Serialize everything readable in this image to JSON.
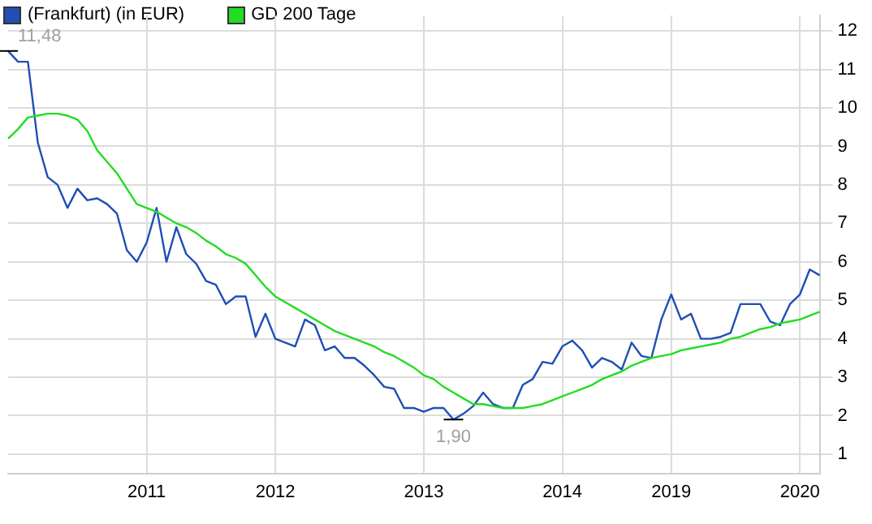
{
  "chart_data": {
    "type": "line",
    "categories": [
      null,
      null,
      null,
      null,
      null,
      null,
      null,
      null,
      null,
      null,
      null,
      null,
      null,
      null,
      "2011",
      null,
      null,
      null,
      null,
      null,
      null,
      null,
      null,
      null,
      null,
      null,
      null,
      "2012",
      null,
      null,
      null,
      null,
      null,
      null,
      null,
      null,
      null,
      null,
      null,
      null,
      null,
      null,
      "2013",
      null,
      null,
      null,
      null,
      null,
      null,
      null,
      null,
      null,
      null,
      null,
      null,
      null,
      "2014",
      null,
      null,
      null,
      null,
      null,
      null,
      null,
      null,
      null,
      null,
      "2019",
      null,
      null,
      null,
      null,
      null,
      null,
      null,
      null,
      null,
      null,
      null,
      null,
      "2020",
      null,
      null
    ],
    "series": [
      {
        "name": "(Frankfurt) (in EUR)",
        "color": "#1f4fb4",
        "values": [
          11.48,
          11.2,
          11.2,
          9.1,
          8.2,
          8.0,
          7.4,
          7.9,
          7.6,
          7.65,
          7.5,
          7.25,
          6.3,
          6.0,
          6.5,
          7.4,
          6.0,
          6.9,
          6.2,
          5.95,
          5.5,
          5.4,
          4.9,
          5.1,
          5.1,
          4.05,
          4.65,
          4.0,
          3.9,
          3.8,
          4.5,
          4.35,
          3.7,
          3.8,
          3.5,
          3.5,
          3.3,
          3.05,
          2.75,
          2.7,
          2.2,
          2.2,
          2.1,
          2.2,
          2.2,
          1.9,
          2.05,
          2.25,
          2.6,
          2.3,
          2.2,
          2.2,
          2.8,
          2.95,
          3.4,
          3.35,
          3.8,
          3.95,
          3.7,
          3.25,
          3.5,
          3.4,
          3.2,
          3.9,
          3.55,
          3.5,
          4.5,
          5.15,
          4.5,
          4.65,
          4.0,
          4.0,
          4.05,
          4.15,
          4.9,
          4.9,
          4.9,
          4.45,
          4.35,
          4.9,
          5.15,
          5.8,
          5.65
        ]
      },
      {
        "name": "GD 200 Tage",
        "color": "#22dd22",
        "values": [
          9.2,
          9.45,
          9.75,
          9.8,
          9.85,
          9.85,
          9.8,
          9.7,
          9.4,
          8.9,
          8.6,
          8.3,
          7.9,
          7.5,
          7.4,
          7.3,
          7.15,
          7.0,
          6.9,
          6.75,
          6.55,
          6.4,
          6.2,
          6.1,
          5.95,
          5.65,
          5.35,
          5.1,
          4.95,
          4.8,
          4.65,
          4.5,
          4.35,
          4.2,
          4.1,
          4.0,
          3.9,
          3.8,
          3.65,
          3.55,
          3.4,
          3.25,
          3.05,
          2.95,
          2.75,
          2.6,
          2.45,
          2.3,
          2.3,
          2.25,
          2.2,
          2.2,
          2.2,
          2.25,
          2.3,
          2.4,
          2.5,
          2.6,
          2.7,
          2.8,
          2.95,
          3.05,
          3.15,
          3.3,
          3.4,
          3.5,
          3.55,
          3.6,
          3.7,
          3.75,
          3.8,
          3.85,
          3.9,
          4.0,
          4.05,
          4.15,
          4.25,
          4.3,
          4.4,
          4.45,
          4.5,
          4.6,
          4.7
        ]
      }
    ],
    "ylim": [
      0.5,
      12.4
    ],
    "yticks": [
      1,
      2,
      3,
      4,
      5,
      6,
      7,
      8,
      9,
      10,
      11,
      12
    ],
    "annotations": [
      "11,48",
      "1,90"
    ],
    "grid": true,
    "legend": "top left",
    "marker": "none",
    "line_style": "solid"
  }
}
